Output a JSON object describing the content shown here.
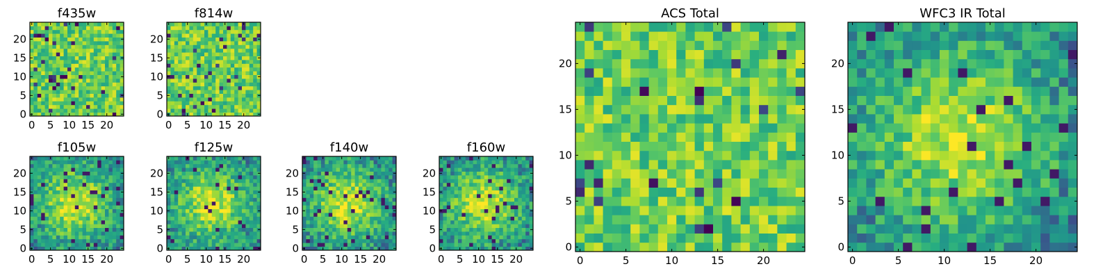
{
  "chart_data": [
    {
      "type": "heatmap",
      "title": "f435w",
      "x_ticks": [
        "0",
        "5",
        "10",
        "15",
        "20"
      ],
      "y_ticks": [
        "0",
        "5",
        "10",
        "15",
        "20"
      ],
      "xlim": [
        0,
        25
      ],
      "ylim": [
        0,
        25
      ],
      "pattern": "noise",
      "seed": 11
    },
    {
      "type": "heatmap",
      "title": "f814w",
      "x_ticks": [
        "0",
        "5",
        "10",
        "15",
        "20"
      ],
      "y_ticks": [
        "0",
        "5",
        "10",
        "15",
        "20"
      ],
      "xlim": [
        0,
        25
      ],
      "ylim": [
        0,
        25
      ],
      "pattern": "noise",
      "seed": 23
    },
    {
      "type": "heatmap",
      "title": "f105w",
      "x_ticks": [
        "0",
        "5",
        "10",
        "15",
        "20"
      ],
      "y_ticks": [
        "0",
        "5",
        "10",
        "15",
        "20"
      ],
      "xlim": [
        0,
        25
      ],
      "ylim": [
        0,
        25
      ],
      "pattern": "blob",
      "seed": 37
    },
    {
      "type": "heatmap",
      "title": "f125w",
      "x_ticks": [
        "0",
        "5",
        "10",
        "15",
        "20"
      ],
      "y_ticks": [
        "0",
        "5",
        "10",
        "15",
        "20"
      ],
      "xlim": [
        0,
        25
      ],
      "ylim": [
        0,
        25
      ],
      "pattern": "blob",
      "seed": 41
    },
    {
      "type": "heatmap",
      "title": "f140w",
      "x_ticks": [
        "0",
        "5",
        "10",
        "15",
        "20"
      ],
      "y_ticks": [
        "0",
        "5",
        "10",
        "15",
        "20"
      ],
      "xlim": [
        0,
        25
      ],
      "ylim": [
        0,
        25
      ],
      "pattern": "blob",
      "seed": 53
    },
    {
      "type": "heatmap",
      "title": "f160w",
      "x_ticks": [
        "0",
        "5",
        "10",
        "15",
        "20"
      ],
      "y_ticks": [
        "0",
        "5",
        "10",
        "15",
        "20"
      ],
      "xlim": [
        0,
        25
      ],
      "ylim": [
        0,
        25
      ],
      "pattern": "blob",
      "seed": 67
    },
    {
      "type": "heatmap",
      "title": "ACS Total",
      "x_ticks": [
        "0",
        "5",
        "10",
        "15",
        "20"
      ],
      "y_ticks": [
        "0",
        "5",
        "10",
        "15",
        "20"
      ],
      "xlim": [
        0,
        25
      ],
      "ylim": [
        0,
        25
      ],
      "pattern": "noise",
      "seed": 79
    },
    {
      "type": "heatmap",
      "title": "WFC3 IR Total",
      "x_ticks": [
        "0",
        "5",
        "10",
        "15",
        "20"
      ],
      "y_ticks": [
        "0",
        "5",
        "10",
        "15",
        "20"
      ],
      "xlim": [
        0,
        25
      ],
      "ylim": [
        0,
        25
      ],
      "pattern": "blob",
      "seed": 97
    }
  ],
  "colormap": [
    "#440154",
    "#3b528b",
    "#21918c",
    "#27ad81",
    "#5ec962",
    "#aadc32",
    "#fde725"
  ]
}
